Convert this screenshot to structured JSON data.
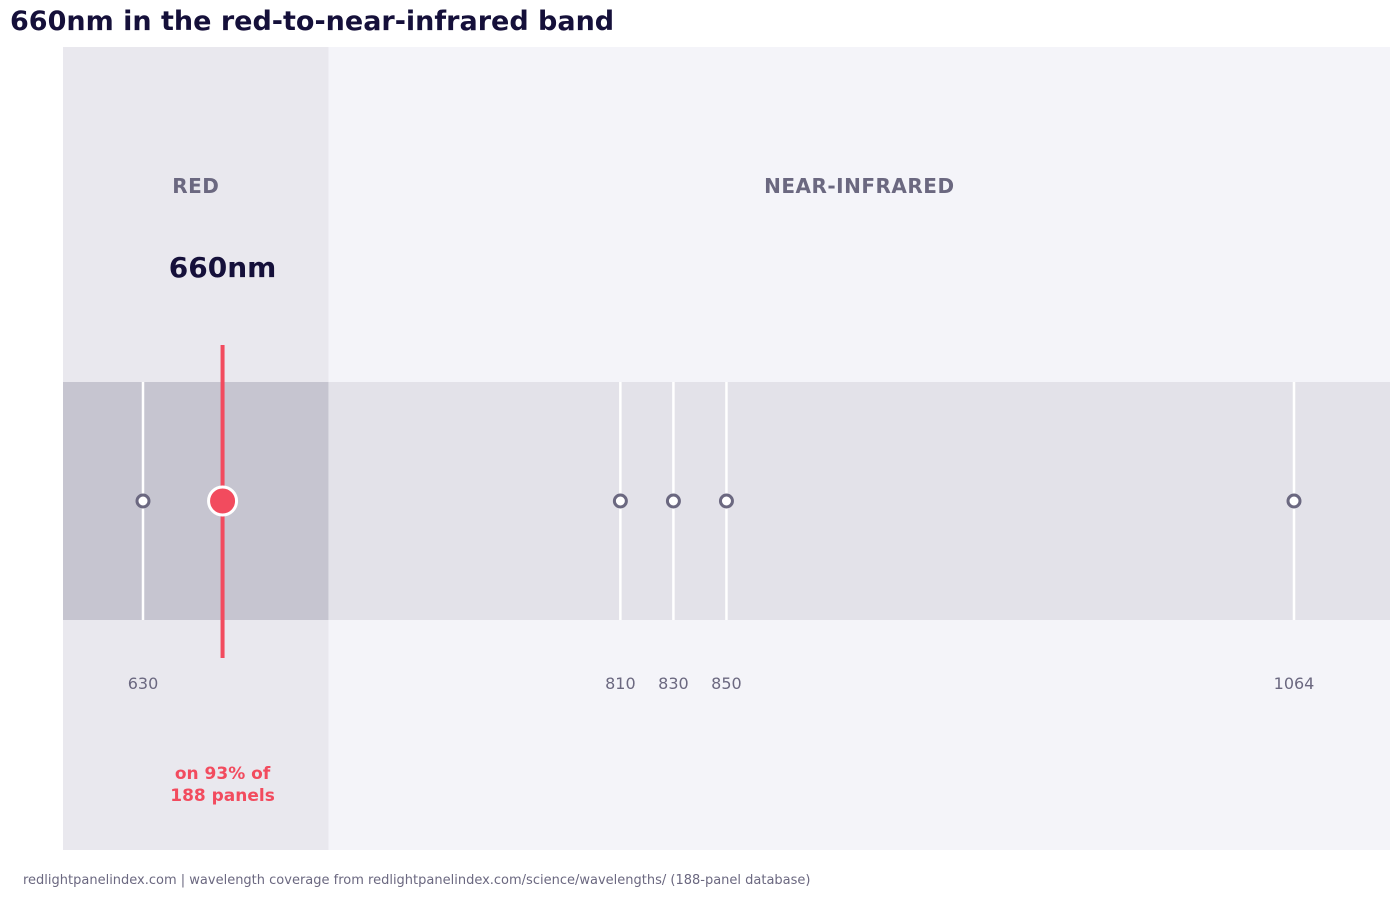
{
  "title": "660nm in the red-to-near-infrared band",
  "footer": "redlightpanelindex.com | wavelength coverage from redlightpanelindex.com/science/wavelengths/ (188-panel database)",
  "colors": {
    "accent": "#f24b5e",
    "red_band_bg": "#e9e8ee",
    "nir_band_bg": "#f4f4f9",
    "red_strip": "#c6c5d0",
    "nir_strip": "#e3e2e9",
    "marker_stroke": "#6b6880",
    "title_text": "#15103a",
    "muted_text": "#6b6880"
  },
  "chart_data": {
    "type": "scatter",
    "title": "660nm in the red-to-near-infrared band",
    "xlabel": "",
    "ylabel": "",
    "xlim": [
      600,
      1100
    ],
    "red_nir_boundary": 700,
    "bands": [
      {
        "label": "RED",
        "start": 600,
        "end": 700
      },
      {
        "label": "NEAR-INFRARED",
        "start": 700,
        "end": 1100
      }
    ],
    "wavelengths": [
      630,
      810,
      830,
      850,
      1064
    ],
    "tick_labels": [
      "630",
      "810",
      "830",
      "850",
      "1064"
    ],
    "highlight": {
      "value": 660,
      "label": "660nm",
      "annotation_lines": [
        "on 93% of",
        "188 panels"
      ],
      "coverage_percent": 93,
      "panel_count": 188
    },
    "grid": false,
    "legend": "none"
  }
}
